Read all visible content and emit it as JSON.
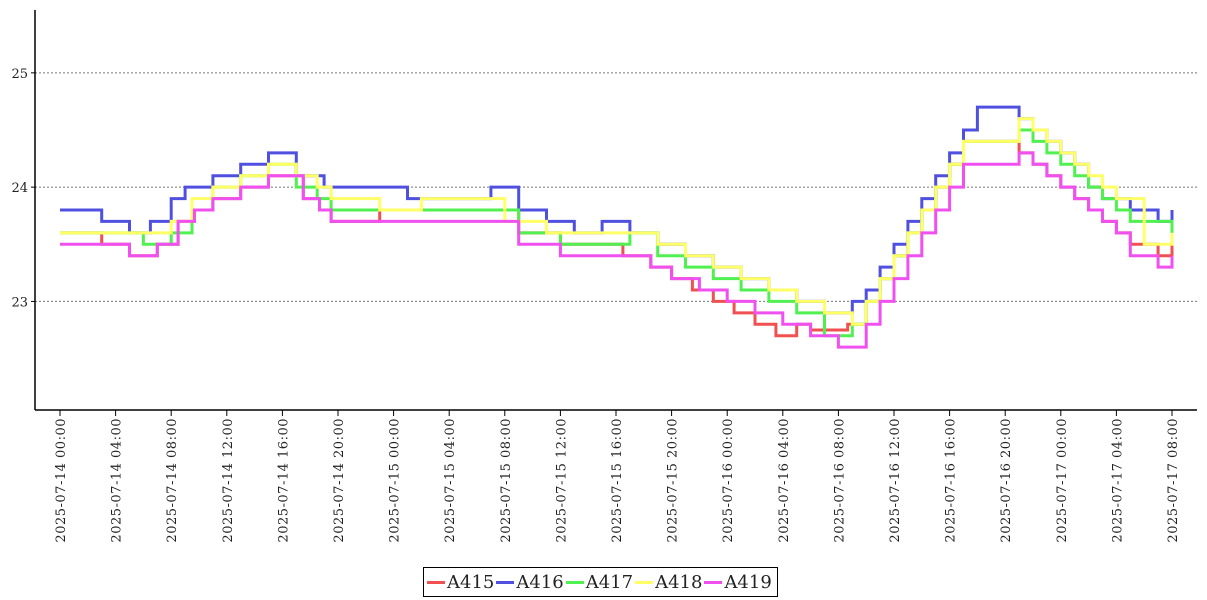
{
  "chart_data": {
    "type": "line",
    "step": true,
    "x_start": "2025-07-14 00:00",
    "x_end": "2025-07-17 08:00",
    "x_ticks": [
      "2025-07-14 00:00",
      "2025-07-14 04:00",
      "2025-07-14 08:00",
      "2025-07-14 12:00",
      "2025-07-14 16:00",
      "2025-07-14 20:00",
      "2025-07-15 00:00",
      "2025-07-15 04:00",
      "2025-07-15 08:00",
      "2025-07-15 12:00",
      "2025-07-15 16:00",
      "2025-07-15 20:00",
      "2025-07-16 00:00",
      "2025-07-16 04:00",
      "2025-07-16 08:00",
      "2025-07-16 12:00",
      "2025-07-16 16:00",
      "2025-07-16 20:00",
      "2025-07-17 00:00",
      "2025-07-17 04:00",
      "2025-07-17 08:00"
    ],
    "y_ticks": [
      23,
      24,
      25
    ],
    "ylim": [
      22.05,
      25.55
    ],
    "xlabel": "",
    "ylabel": "",
    "grid": "horizontal dotted",
    "legend_position": "bottom-center",
    "series": [
      {
        "name": "A415",
        "color": "#f05050",
        "x": [
          "2025-07-14 00:00",
          "2025-07-14 03:00",
          "2025-07-14 05:00",
          "2025-07-14 07:00",
          "2025-07-14 08:30",
          "2025-07-14 09:40",
          "2025-07-14 11:00",
          "2025-07-14 13:00",
          "2025-07-14 15:00",
          "2025-07-14 17:30",
          "2025-07-14 18:40",
          "2025-07-14 19:30",
          "2025-07-14 23:00",
          "2025-07-15 09:00",
          "2025-07-15 12:00",
          "2025-07-15 16:30",
          "2025-07-15 18:30",
          "2025-07-15 20:00",
          "2025-07-15 21:30",
          "2025-07-15 23:00",
          "2025-07-16 00:30",
          "2025-07-16 02:00",
          "2025-07-16 03:30",
          "2025-07-16 05:00",
          "2025-07-16 06:00",
          "2025-07-16 08:40",
          "2025-07-16 10:00",
          "2025-07-16 11:00",
          "2025-07-16 12:00",
          "2025-07-16 13:00",
          "2025-07-16 14:00",
          "2025-07-16 15:00",
          "2025-07-16 16:00",
          "2025-07-16 17:00",
          "2025-07-16 21:00",
          "2025-07-16 22:00",
          "2025-07-16 23:00",
          "2025-07-17 00:00",
          "2025-07-17 01:00",
          "2025-07-17 02:00",
          "2025-07-17 03:00",
          "2025-07-17 04:00",
          "2025-07-17 05:00",
          "2025-07-17 07:00",
          "2025-07-17 08:00"
        ],
        "y": [
          23.6,
          23.5,
          23.4,
          23.5,
          23.7,
          23.8,
          23.9,
          24.0,
          24.1,
          23.9,
          23.8,
          23.7,
          23.8,
          23.6,
          23.5,
          23.4,
          23.3,
          23.2,
          23.1,
          23.0,
          22.9,
          22.8,
          22.7,
          22.8,
          22.75,
          22.8,
          23.0,
          23.2,
          23.4,
          23.6,
          23.8,
          24.0,
          24.2,
          24.4,
          24.3,
          24.2,
          24.1,
          24.0,
          23.9,
          23.8,
          23.7,
          23.6,
          23.5,
          23.4,
          23.5
        ]
      },
      {
        "name": "A416",
        "color": "#5050e0",
        "x": [
          "2025-07-14 00:00",
          "2025-07-14 03:00",
          "2025-07-14 05:00",
          "2025-07-14 06:30",
          "2025-07-14 08:00",
          "2025-07-14 09:00",
          "2025-07-14 11:00",
          "2025-07-14 13:00",
          "2025-07-14 15:00",
          "2025-07-14 17:00",
          "2025-07-14 19:00",
          "2025-07-15 01:00",
          "2025-07-15 07:00",
          "2025-07-15 09:00",
          "2025-07-15 11:00",
          "2025-07-15 13:00",
          "2025-07-15 15:00",
          "2025-07-15 17:00",
          "2025-07-15 19:00",
          "2025-07-15 21:00",
          "2025-07-15 23:00",
          "2025-07-16 01:00",
          "2025-07-16 03:00",
          "2025-07-16 05:00",
          "2025-07-16 07:00",
          "2025-07-16 09:00",
          "2025-07-16 10:00",
          "2025-07-16 11:00",
          "2025-07-16 12:00",
          "2025-07-16 13:00",
          "2025-07-16 14:00",
          "2025-07-16 15:00",
          "2025-07-16 16:00",
          "2025-07-16 17:00",
          "2025-07-16 18:00",
          "2025-07-16 21:00",
          "2025-07-16 22:00",
          "2025-07-16 23:00",
          "2025-07-17 00:00",
          "2025-07-17 01:00",
          "2025-07-17 02:00",
          "2025-07-17 03:00",
          "2025-07-17 05:00",
          "2025-07-17 07:00",
          "2025-07-17 08:00"
        ],
        "y": [
          23.8,
          23.7,
          23.6,
          23.7,
          23.9,
          24.0,
          24.1,
          24.2,
          24.3,
          24.1,
          24.0,
          23.9,
          24.0,
          23.8,
          23.7,
          23.6,
          23.7,
          23.6,
          23.5,
          23.4,
          23.3,
          23.2,
          23.1,
          23.0,
          22.9,
          23.0,
          23.1,
          23.3,
          23.5,
          23.7,
          23.9,
          24.1,
          24.3,
          24.5,
          24.7,
          24.6,
          24.5,
          24.4,
          24.3,
          24.2,
          24.0,
          23.9,
          23.8,
          23.7,
          23.8
        ]
      },
      {
        "name": "A417",
        "color": "#50f050",
        "x": [
          "2025-07-14 00:00",
          "2025-07-14 03:00",
          "2025-07-14 06:00",
          "2025-07-14 08:00",
          "2025-07-14 09:30",
          "2025-07-14 11:00",
          "2025-07-14 13:00",
          "2025-07-14 15:00",
          "2025-07-14 17:00",
          "2025-07-14 18:30",
          "2025-07-14 19:30",
          "2025-07-14 23:00",
          "2025-07-15 09:00",
          "2025-07-15 12:00",
          "2025-07-15 13:30",
          "2025-07-15 17:00",
          "2025-07-15 19:00",
          "2025-07-15 21:00",
          "2025-07-15 23:00",
          "2025-07-16 01:00",
          "2025-07-16 03:00",
          "2025-07-16 05:00",
          "2025-07-16 07:00",
          "2025-07-16 09:00",
          "2025-07-16 10:00",
          "2025-07-16 11:00",
          "2025-07-16 12:00",
          "2025-07-16 13:00",
          "2025-07-16 14:00",
          "2025-07-16 15:00",
          "2025-07-16 16:00",
          "2025-07-16 17:00",
          "2025-07-16 21:00",
          "2025-07-16 22:00",
          "2025-07-16 23:00",
          "2025-07-17 00:00",
          "2025-07-17 01:00",
          "2025-07-17 02:00",
          "2025-07-17 03:00",
          "2025-07-17 04:00",
          "2025-07-17 05:00",
          "2025-07-17 08:00"
        ],
        "y": [
          23.6,
          23.6,
          23.5,
          23.6,
          23.8,
          24.0,
          24.1,
          24.2,
          24.0,
          23.9,
          23.8,
          23.8,
          23.6,
          23.5,
          23.5,
          23.6,
          23.4,
          23.3,
          23.2,
          23.1,
          23.0,
          22.9,
          22.7,
          22.8,
          23.0,
          23.2,
          23.4,
          23.6,
          23.8,
          24.0,
          24.2,
          24.4,
          24.5,
          24.4,
          24.3,
          24.2,
          24.1,
          24.0,
          23.9,
          23.8,
          23.7,
          23.6
        ]
      },
      {
        "name": "A418",
        "color": "#ffff66",
        "x": [
          "2025-07-14 00:00",
          "2025-07-14 03:00",
          "2025-07-14 06:00",
          "2025-07-14 08:00",
          "2025-07-14 09:30",
          "2025-07-14 11:00",
          "2025-07-14 13:00",
          "2025-07-14 15:00",
          "2025-07-14 17:00",
          "2025-07-14 18:30",
          "2025-07-14 19:30",
          "2025-07-14 23:00",
          "2025-07-15 02:00",
          "2025-07-15 08:00",
          "2025-07-15 11:00",
          "2025-07-15 14:00",
          "2025-07-15 19:00",
          "2025-07-15 21:00",
          "2025-07-15 23:00",
          "2025-07-16 01:00",
          "2025-07-16 03:00",
          "2025-07-16 05:00",
          "2025-07-16 07:00",
          "2025-07-16 09:00",
          "2025-07-16 10:00",
          "2025-07-16 11:00",
          "2025-07-16 12:00",
          "2025-07-16 13:00",
          "2025-07-16 14:00",
          "2025-07-16 15:00",
          "2025-07-16 16:00",
          "2025-07-16 17:00",
          "2025-07-16 21:00",
          "2025-07-16 22:00",
          "2025-07-16 23:00",
          "2025-07-17 00:00",
          "2025-07-17 01:00",
          "2025-07-17 02:00",
          "2025-07-17 03:00",
          "2025-07-17 04:00",
          "2025-07-17 06:00",
          "2025-07-17 08:00"
        ],
        "y": [
          23.6,
          23.6,
          23.6,
          23.7,
          23.9,
          24.0,
          24.1,
          24.2,
          24.1,
          24.0,
          23.9,
          23.8,
          23.9,
          23.7,
          23.6,
          23.6,
          23.5,
          23.4,
          23.3,
          23.2,
          23.1,
          23.0,
          22.9,
          22.8,
          23.0,
          23.2,
          23.4,
          23.6,
          23.8,
          24.0,
          24.2,
          24.4,
          24.6,
          24.5,
          24.4,
          24.3,
          24.2,
          24.1,
          24.0,
          23.9,
          23.5,
          23.6
        ]
      },
      {
        "name": "A419",
        "color": "#f050f0",
        "x": [
          "2025-07-14 00:00",
          "2025-07-14 03:00",
          "2025-07-14 05:00",
          "2025-07-14 07:00",
          "2025-07-14 08:30",
          "2025-07-14 09:40",
          "2025-07-14 11:00",
          "2025-07-14 13:00",
          "2025-07-14 15:00",
          "2025-07-14 17:30",
          "2025-07-14 18:40",
          "2025-07-14 19:30",
          "2025-07-14 23:00",
          "2025-07-15 09:00",
          "2025-07-15 12:00",
          "2025-07-15 16:30",
          "2025-07-15 18:30",
          "2025-07-15 20:00",
          "2025-07-15 22:00",
          "2025-07-16 00:00",
          "2025-07-16 02:00",
          "2025-07-16 04:00",
          "2025-07-16 06:00",
          "2025-07-16 08:00",
          "2025-07-16 10:00",
          "2025-07-16 11:00",
          "2025-07-16 12:00",
          "2025-07-16 13:00",
          "2025-07-16 14:00",
          "2025-07-16 15:00",
          "2025-07-16 16:00",
          "2025-07-16 17:00",
          "2025-07-16 21:00",
          "2025-07-16 22:00",
          "2025-07-16 23:00",
          "2025-07-17 00:00",
          "2025-07-17 01:00",
          "2025-07-17 02:00",
          "2025-07-17 03:00",
          "2025-07-17 04:00",
          "2025-07-17 05:00",
          "2025-07-17 07:00",
          "2025-07-17 08:00"
        ],
        "y": [
          23.5,
          23.5,
          23.4,
          23.5,
          23.7,
          23.8,
          23.9,
          24.0,
          24.1,
          23.9,
          23.8,
          23.7,
          23.7,
          23.5,
          23.4,
          23.4,
          23.3,
          23.2,
          23.1,
          23.0,
          22.9,
          22.8,
          22.7,
          22.6,
          22.8,
          23.0,
          23.2,
          23.4,
          23.6,
          23.8,
          24.0,
          24.2,
          24.3,
          24.2,
          24.1,
          24.0,
          23.9,
          23.8,
          23.7,
          23.6,
          23.4,
          23.3,
          23.4
        ]
      }
    ]
  }
}
